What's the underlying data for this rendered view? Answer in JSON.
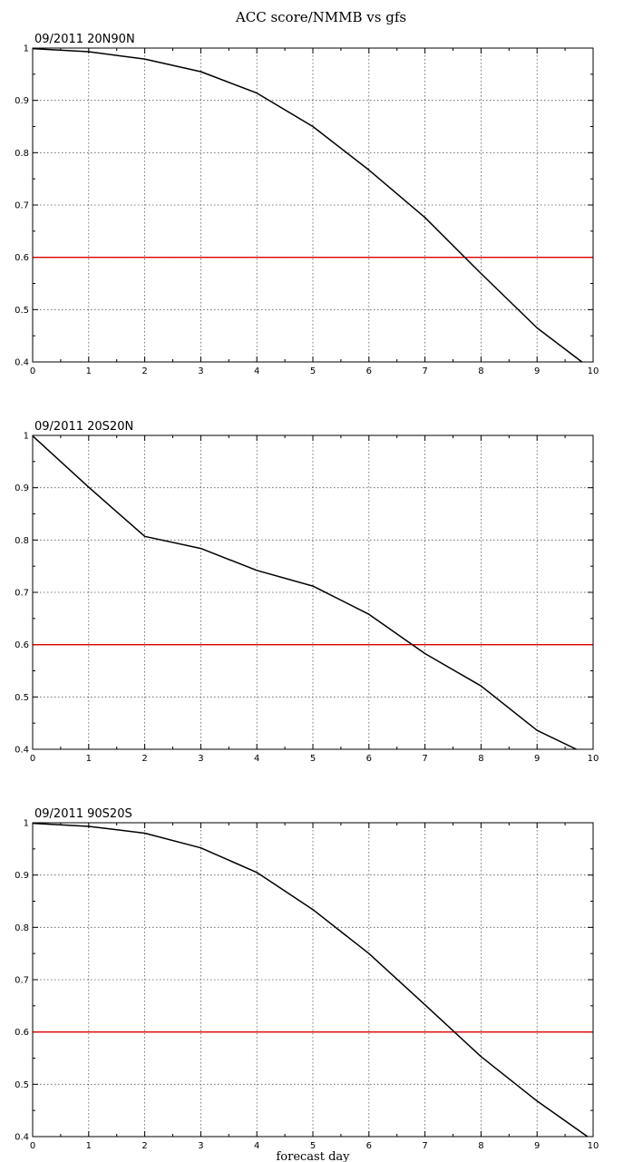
{
  "figure": {
    "title": "ACC score/NMMB vs gfs",
    "xlabel": "forecast day"
  },
  "colors": {
    "series": "#000000",
    "threshold": "#dd0000",
    "grid": "#555555"
  },
  "chart_data": [
    {
      "type": "line",
      "title": "09/2011 20N90N",
      "xlim": [
        0,
        10
      ],
      "ylim": [
        0.4,
        1.0
      ],
      "xticks": [
        0,
        1,
        2,
        3,
        4,
        5,
        6,
        7,
        8,
        9,
        10
      ],
      "yticks": [
        0.4,
        0.5,
        0.6,
        0.7,
        0.8,
        0.9,
        1.0
      ],
      "ytick_labels": [
        "0.4",
        "0.5",
        "0.6",
        "0.7",
        "0.8",
        "0.9",
        "1"
      ],
      "grid": true,
      "reference_line": 0.6,
      "series": [
        {
          "x": [
            0,
            1,
            2,
            3,
            4,
            5,
            6,
            7,
            8,
            9,
            9.8
          ],
          "y": [
            0.999,
            0.993,
            0.979,
            0.955,
            0.914,
            0.85,
            0.767,
            0.676,
            0.569,
            0.465,
            0.4
          ]
        }
      ]
    },
    {
      "type": "line",
      "title": "09/2011 20S20N",
      "xlim": [
        0,
        10
      ],
      "ylim": [
        0.4,
        1.0
      ],
      "xticks": [
        0,
        1,
        2,
        3,
        4,
        5,
        6,
        7,
        8,
        9,
        10
      ],
      "yticks": [
        0.4,
        0.5,
        0.6,
        0.7,
        0.8,
        0.9,
        1.0
      ],
      "ytick_labels": [
        "0.4",
        "0.5",
        "0.6",
        "0.7",
        "0.8",
        "0.9",
        "1"
      ],
      "grid": true,
      "reference_line": 0.6,
      "series": [
        {
          "x": [
            0,
            1,
            2,
            3,
            4,
            5,
            6,
            7,
            8,
            9,
            9.7
          ],
          "y": [
            0.999,
            0.901,
            0.807,
            0.784,
            0.742,
            0.712,
            0.658,
            0.583,
            0.521,
            0.436,
            0.4
          ]
        }
      ]
    },
    {
      "type": "line",
      "title": "09/2011 90S20S",
      "xlim": [
        0,
        10
      ],
      "ylim": [
        0.4,
        1.0
      ],
      "xticks": [
        0,
        1,
        2,
        3,
        4,
        5,
        6,
        7,
        8,
        9,
        10
      ],
      "yticks": [
        0.4,
        0.5,
        0.6,
        0.7,
        0.8,
        0.9,
        1.0
      ],
      "ytick_labels": [
        "0.4",
        "0.5",
        "0.6",
        "0.7",
        "0.8",
        "0.9",
        "1"
      ],
      "grid": true,
      "reference_line": 0.6,
      "series": [
        {
          "x": [
            0,
            1,
            2,
            3,
            4,
            5,
            6,
            7,
            8,
            9,
            9.9
          ],
          "y": [
            0.999,
            0.993,
            0.98,
            0.952,
            0.905,
            0.834,
            0.75,
            0.652,
            0.553,
            0.468,
            0.4
          ]
        }
      ]
    }
  ]
}
